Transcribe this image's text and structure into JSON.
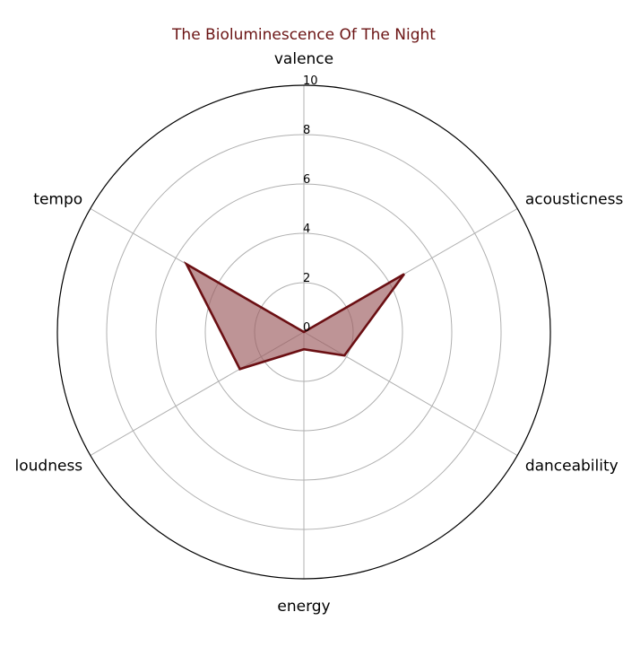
{
  "chart_data": {
    "type": "radar",
    "title": "The Bioluminescence Of The Night",
    "categories": [
      "valence",
      "acousticness",
      "danceability",
      "energy",
      "loudness",
      "tempo"
    ],
    "series": [
      {
        "values": [
          0,
          4.7,
          1.9,
          0.7,
          3.0,
          5.5
        ]
      }
    ],
    "rlim": [
      0,
      10
    ],
    "rticks": [
      "0",
      "2",
      "4",
      "6",
      "8",
      "10"
    ],
    "grid": true,
    "colors": {
      "title": "#6b1414",
      "line": "#6b0f13",
      "fill": "#9b5a5d",
      "grid": "#b0b0b0",
      "outer": "#000000"
    }
  }
}
